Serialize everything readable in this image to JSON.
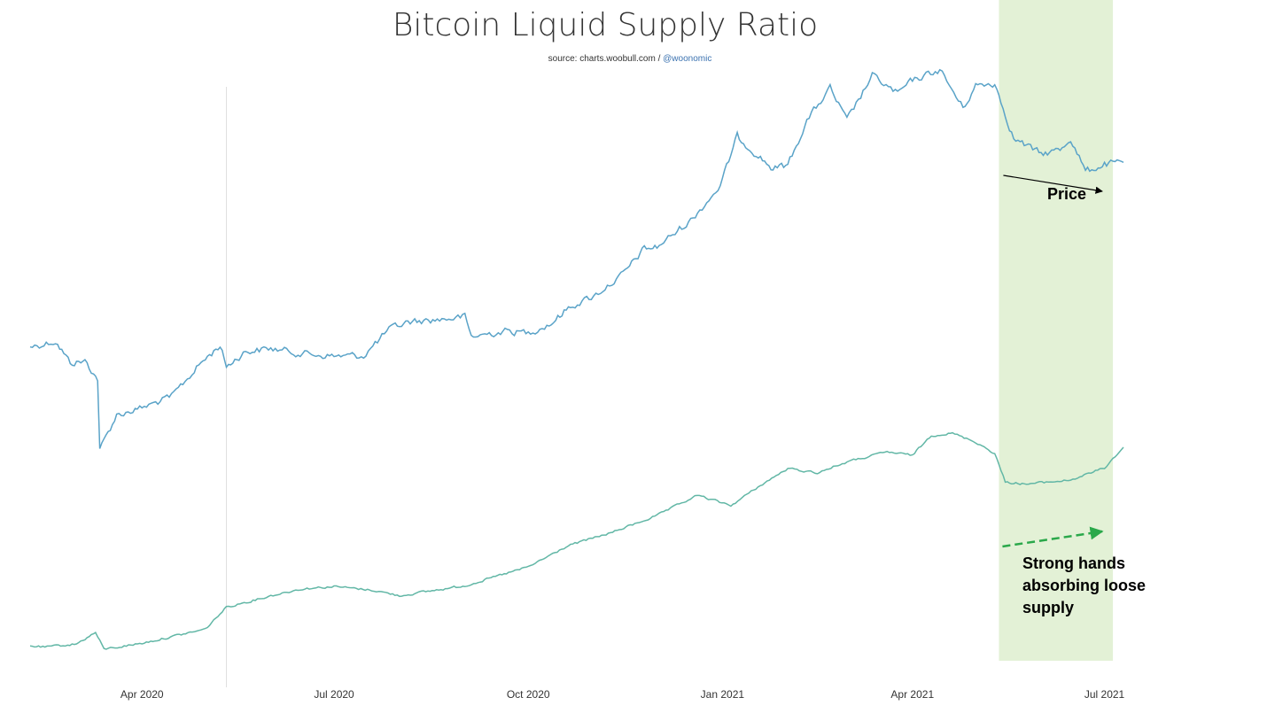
{
  "header": {
    "title": "Bitcoin Liquid Supply Ratio",
    "source_prefix": "source: charts.woobull.com / ",
    "source_handle": "@woonomic"
  },
  "annotations": {
    "price_label": "Price",
    "supply_lines": [
      "Strong hands",
      "absorbing loose",
      "supply"
    ]
  },
  "colors": {
    "price_line": "#5aa3c8",
    "ratio_line": "#62b7a6",
    "highlight": "#e3f1d6",
    "green_arrow": "#2aa84a",
    "black_arrow": "#000000"
  },
  "chart_data": {
    "type": "line",
    "title": "Bitcoin Liquid Supply Ratio",
    "xlabel": "",
    "ylabel": "",
    "x_range": [
      "2020-02-08",
      "2021-07-10"
    ],
    "x_ticks": [
      {
        "label": "Apr 2020",
        "date": "2020-04-01"
      },
      {
        "label": "Jul 2020",
        "date": "2020-07-01"
      },
      {
        "label": "Oct 2020",
        "date": "2020-10-01"
      },
      {
        "label": "Jan 2021",
        "date": "2021-01-01"
      },
      {
        "label": "Apr 2021",
        "date": "2021-04-01"
      },
      {
        "label": "Jul 2021",
        "date": "2021-07-01"
      }
    ],
    "highlight_range": [
      "2021-05-12",
      "2021-07-05"
    ],
    "reference_line_date": "2020-05-11",
    "price_scale": "log",
    "price_range": [
      3000,
      80000
    ],
    "ratio_range": [
      0.15,
      0.55
    ],
    "series": [
      {
        "name": "Price (USD)",
        "x": [
          "2020-02-08",
          "2020-02-20",
          "2020-02-27",
          "2020-03-05",
          "2020-03-11",
          "2020-03-12",
          "2020-03-14",
          "2020-03-20",
          "2020-04-01",
          "2020-04-15",
          "2020-04-29",
          "2020-05-08",
          "2020-05-11",
          "2020-05-20",
          "2020-06-01",
          "2020-06-15",
          "2020-07-01",
          "2020-07-15",
          "2020-07-27",
          "2020-08-05",
          "2020-08-20",
          "2020-09-01",
          "2020-09-04",
          "2020-09-20",
          "2020-10-01",
          "2020-10-12",
          "2020-10-21",
          "2020-11-01",
          "2020-11-15",
          "2020-11-25",
          "2020-12-01",
          "2020-12-17",
          "2020-12-31",
          "2021-01-08",
          "2021-01-15",
          "2021-01-25",
          "2021-02-01",
          "2021-02-10",
          "2021-02-21",
          "2021-03-01",
          "2021-03-13",
          "2021-03-25",
          "2021-04-01",
          "2021-04-14",
          "2021-04-25",
          "2021-05-01",
          "2021-05-10",
          "2021-05-19",
          "2021-05-25",
          "2021-06-01",
          "2021-06-10",
          "2021-06-15",
          "2021-06-22",
          "2021-07-01",
          "2021-07-10"
        ],
        "values": [
          9800,
          10200,
          8800,
          8900,
          7900,
          4900,
          5200,
          6200,
          6500,
          7000,
          8800,
          9900,
          8600,
          9500,
          9700,
          9400,
          9200,
          9250,
          11000,
          11600,
          11800,
          12000,
          10500,
          10900,
          10800,
          11500,
          12900,
          13800,
          16000,
          19000,
          19200,
          23000,
          29000,
          40500,
          37000,
          32500,
          33500,
          45000,
          56000,
          45000,
          61000,
          54000,
          59000,
          63500,
          49000,
          57000,
          58000,
          40000,
          38000,
          36000,
          37000,
          40000,
          32000,
          33500,
          34000
        ]
      },
      {
        "name": "Liquid Supply Ratio",
        "x": [
          "2020-02-08",
          "2020-02-15",
          "2020-03-01",
          "2020-03-10",
          "2020-03-14",
          "2020-04-01",
          "2020-05-01",
          "2020-05-11",
          "2020-06-01",
          "2020-06-15",
          "2020-07-01",
          "2020-07-20",
          "2020-08-01",
          "2020-09-01",
          "2020-10-01",
          "2020-10-20",
          "2020-11-10",
          "2020-12-01",
          "2020-12-20",
          "2021-01-05",
          "2021-01-20",
          "2021-02-01",
          "2021-02-15",
          "2021-03-01",
          "2021-03-20",
          "2021-04-01",
          "2021-04-10",
          "2021-04-20",
          "2021-05-01",
          "2021-05-10",
          "2021-05-15",
          "2021-05-25",
          "2021-06-15",
          "2021-07-01",
          "2021-07-10"
        ],
        "values": [
          0.2,
          0.198,
          0.203,
          0.22,
          0.195,
          0.204,
          0.225,
          0.258,
          0.275,
          0.285,
          0.289,
          0.283,
          0.275,
          0.29,
          0.318,
          0.35,
          0.37,
          0.395,
          0.425,
          0.41,
          0.442,
          0.465,
          0.459,
          0.475,
          0.49,
          0.485,
          0.515,
          0.518,
          0.505,
          0.488,
          0.445,
          0.442,
          0.448,
          0.466,
          0.497
        ]
      }
    ]
  }
}
